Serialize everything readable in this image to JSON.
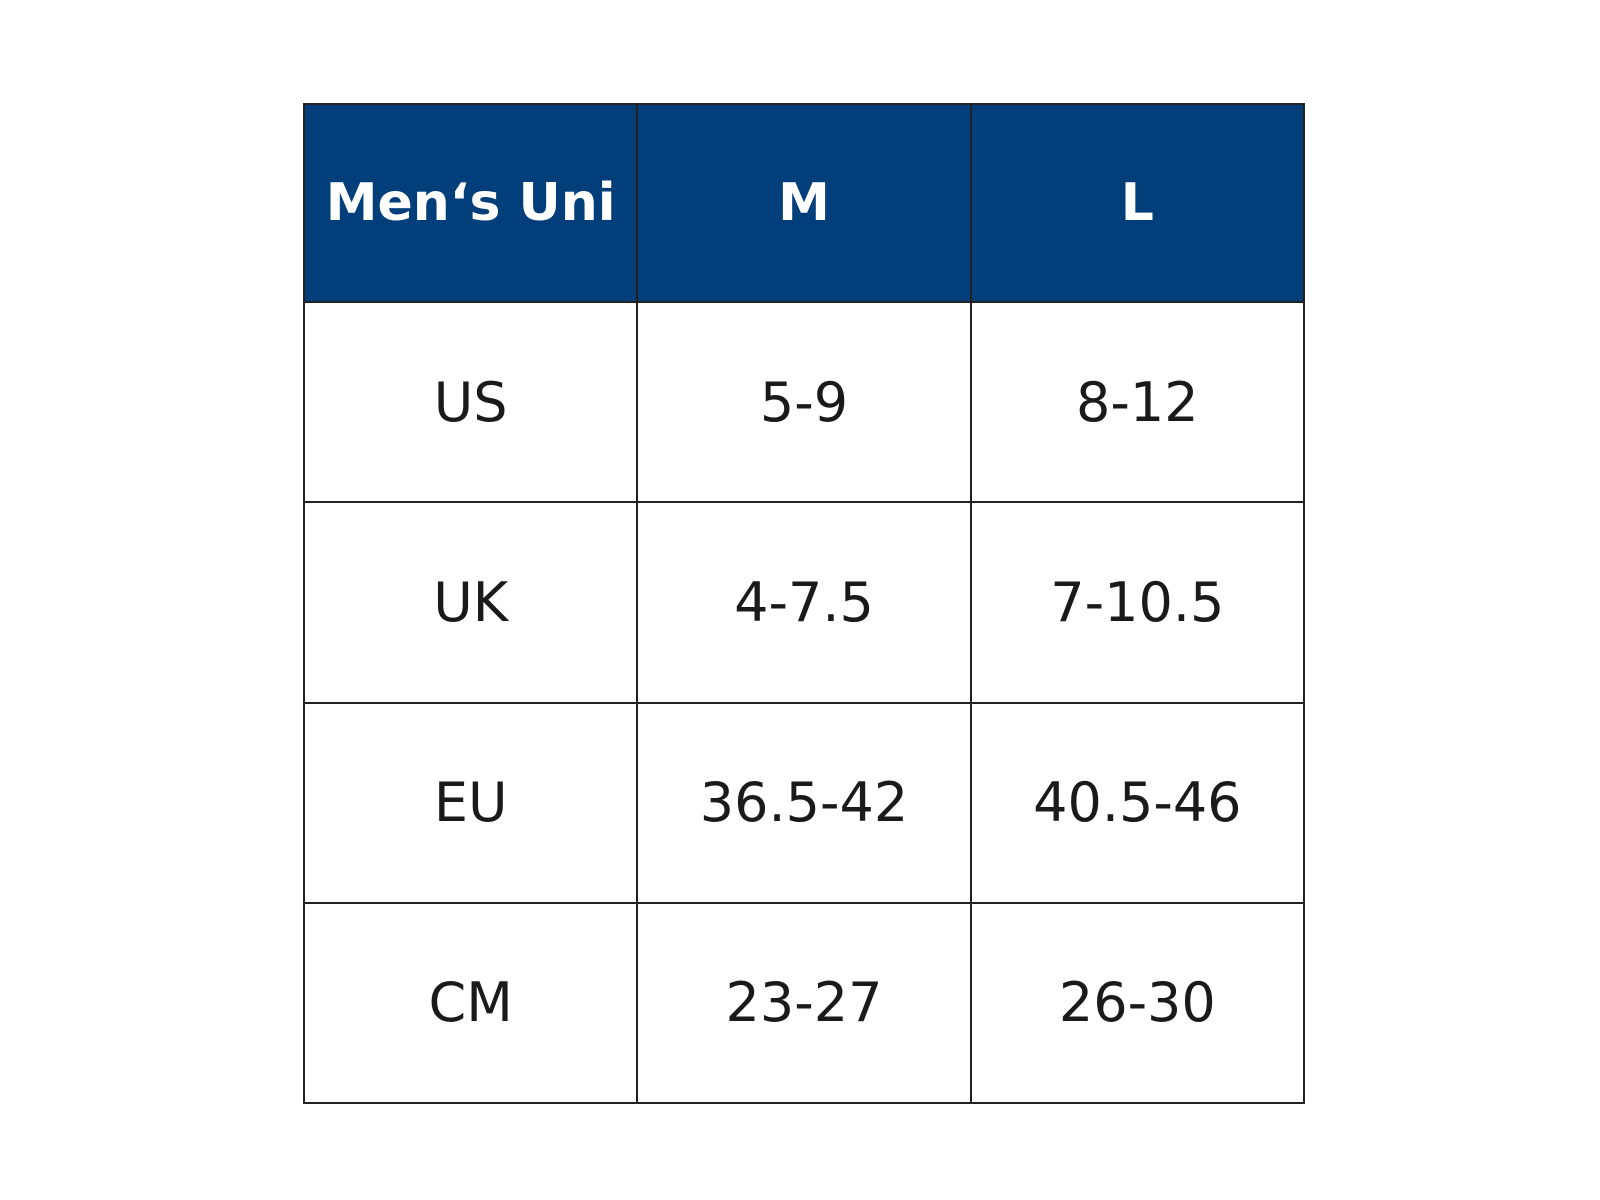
{
  "table": {
    "header": [
      "Men‘s Uni",
      "M",
      "L"
    ],
    "rows": [
      [
        "US",
        "5-9",
        "8-12"
      ],
      [
        "UK",
        "4-7.5",
        "7-10.5"
      ],
      [
        "EU",
        "36.5-42",
        "40.5-46"
      ],
      [
        "CM",
        "23-27",
        "26-30"
      ]
    ]
  }
}
